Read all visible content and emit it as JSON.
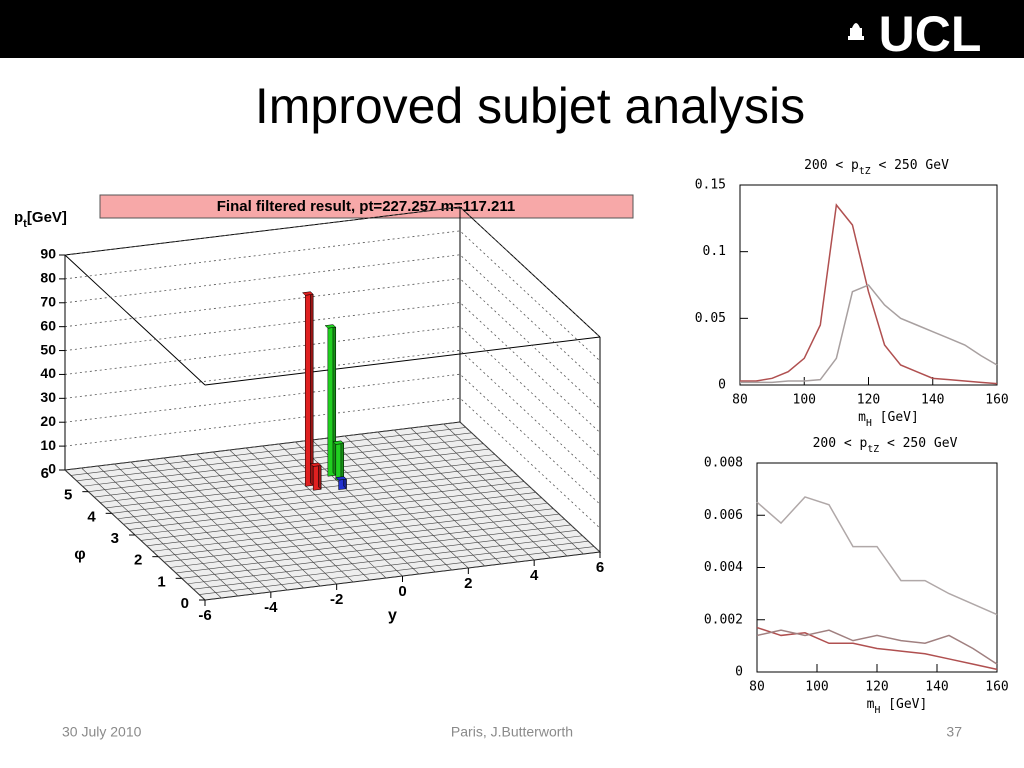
{
  "header": {
    "logo": "UCL"
  },
  "title": "Improved subjet analysis",
  "footer": {
    "date": "30 July 2010",
    "author": "Paris, J.Butterworth",
    "page": 37
  },
  "chart_data": [
    {
      "type": "lego3d",
      "title": "Final filtered result,   pt=227.257 m=117.211",
      "zlabel": {
        "symbol": "p",
        "sub": "t",
        "unit": "[GeV]"
      },
      "xlabel": "y",
      "ylabel": "φ",
      "xlim": [
        -6,
        6
      ],
      "xticks": [
        -6,
        -4,
        -2,
        0,
        2,
        4,
        6
      ],
      "ylim": [
        0,
        6
      ],
      "yticks": [
        0,
        1,
        2,
        3,
        4,
        5,
        6
      ],
      "zlim": [
        0,
        90
      ],
      "zticks": [
        0,
        10,
        20,
        30,
        40,
        50,
        60,
        70,
        80,
        90
      ],
      "grid": true,
      "series": [
        {
          "color": "#e02020",
          "x": [
            0.1,
            0.2
          ],
          "y": [
            4.2,
            4.0
          ],
          "values": [
            80,
            10
          ]
        },
        {
          "color": "#20d020",
          "x": [
            1.0,
            1.1
          ],
          "y": [
            4.5,
            4.3
          ],
          "values": [
            62,
            15
          ]
        },
        {
          "color": "#2030d0",
          "x": [
            0.9
          ],
          "y": [
            3.9
          ],
          "values": [
            4
          ]
        }
      ]
    },
    {
      "type": "line",
      "title": {
        "pre": "200 < p",
        "sub": "tZ",
        "post": " < 250 GeV"
      },
      "xlabel": {
        "symbol": "m",
        "sub": "H",
        "unit": " [GeV]"
      },
      "xlim": [
        80,
        160
      ],
      "xticks": [
        80,
        100,
        120,
        140,
        160
      ],
      "ylim": [
        0,
        0.15
      ],
      "yticks": [
        0,
        0.05,
        0.1,
        0.15
      ],
      "x": [
        80,
        85,
        90,
        95,
        100,
        105,
        110,
        115,
        120,
        125,
        130,
        135,
        140,
        145,
        150,
        155,
        160
      ],
      "series": [
        {
          "color": "#b05050",
          "values": [
            0.003,
            0.003,
            0.005,
            0.01,
            0.02,
            0.045,
            0.135,
            0.12,
            0.07,
            0.03,
            0.015,
            0.01,
            0.005,
            0.004,
            0.003,
            0.002,
            0.001
          ]
        },
        {
          "color": "#a8a0a0",
          "values": [
            0.002,
            0.002,
            0.002,
            0.003,
            0.003,
            0.004,
            0.02,
            0.07,
            0.075,
            0.06,
            0.05,
            0.045,
            0.04,
            0.035,
            0.03,
            0.022,
            0.015
          ]
        }
      ]
    },
    {
      "type": "line",
      "title": {
        "pre": "200 < p",
        "sub": "tZ",
        "post": " < 250 GeV"
      },
      "xlabel": {
        "symbol": "m",
        "sub": "H",
        "unit": " [GeV]"
      },
      "xlim": [
        80,
        160
      ],
      "xticks": [
        80,
        100,
        120,
        140,
        160
      ],
      "ylim": [
        0,
        0.008
      ],
      "yticks": [
        0,
        0.002,
        0.004,
        0.006,
        0.008
      ],
      "x": [
        80,
        88,
        96,
        104,
        112,
        120,
        128,
        136,
        144,
        152,
        160
      ],
      "series": [
        {
          "color": "#b0a8a8",
          "values": [
            0.0065,
            0.0057,
            0.0067,
            0.0064,
            0.0048,
            0.0048,
            0.0035,
            0.0035,
            0.003,
            0.0026,
            0.0022
          ]
        },
        {
          "color": "#b05050",
          "values": [
            0.0017,
            0.0014,
            0.0015,
            0.0011,
            0.0011,
            0.0009,
            0.0008,
            0.0007,
            0.0005,
            0.0003,
            0.0001
          ]
        },
        {
          "color": "#a08080",
          "values": [
            0.0014,
            0.0016,
            0.0014,
            0.0016,
            0.0012,
            0.0014,
            0.0012,
            0.0011,
            0.0014,
            0.0009,
            0.0003
          ]
        }
      ]
    }
  ]
}
